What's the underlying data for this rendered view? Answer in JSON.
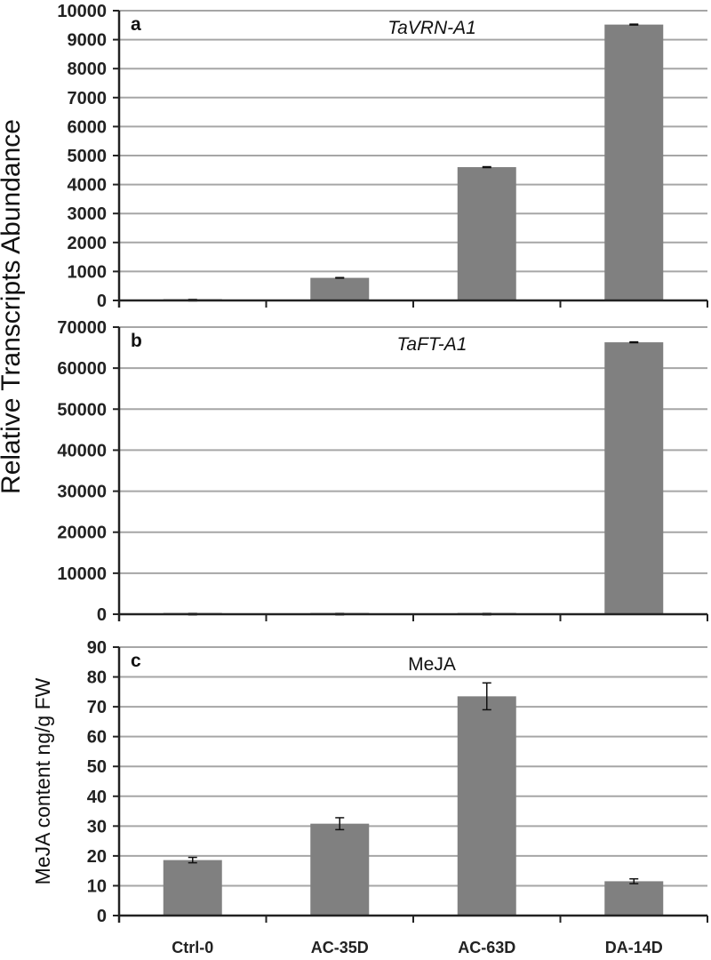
{
  "shared_ylabel": "Relative Transcripts Abundance",
  "colors": {
    "bar": "#808080",
    "grid": "#a6a6a6",
    "axis": "#222222"
  },
  "chart_data": [
    {
      "type": "bar",
      "panel": "a",
      "title": "TaVRN-A1",
      "title_style": "italic",
      "ylabel": "Relative Transcripts Abundance",
      "categories": [
        "Ctrl-0",
        "AC-35D",
        "AC-63D",
        "DA-14D"
      ],
      "values": [
        10,
        780,
        4600,
        9520
      ],
      "errors": [
        0,
        10,
        15,
        15
      ],
      "ylim": [
        0,
        10000
      ],
      "ytick_step": 1000,
      "grid": true
    },
    {
      "type": "bar",
      "panel": "b",
      "title": "TaFT-A1",
      "title_style": "italic",
      "ylabel": "Relative Transcripts Abundance",
      "categories": [
        "Ctrl-0",
        "AC-35D",
        "AC-63D",
        "DA-14D"
      ],
      "values": [
        20,
        20,
        20,
        66300
      ],
      "errors": [
        0,
        0,
        0,
        100
      ],
      "ylim": [
        0,
        70000
      ],
      "ytick_step": 10000,
      "grid": true
    },
    {
      "type": "bar",
      "panel": "c",
      "title": "MeJA",
      "title_style": "normal",
      "ylabel": "MeJA content ng/g FW",
      "categories": [
        "Ctrl-0",
        "AC-35D",
        "AC-63D",
        "DA-14D"
      ],
      "values": [
        18.6,
        30.8,
        73.5,
        11.5
      ],
      "errors": [
        0.9,
        2.0,
        4.5,
        0.8
      ],
      "ylim": [
        0,
        90
      ],
      "ytick_step": 10,
      "grid": true
    }
  ]
}
